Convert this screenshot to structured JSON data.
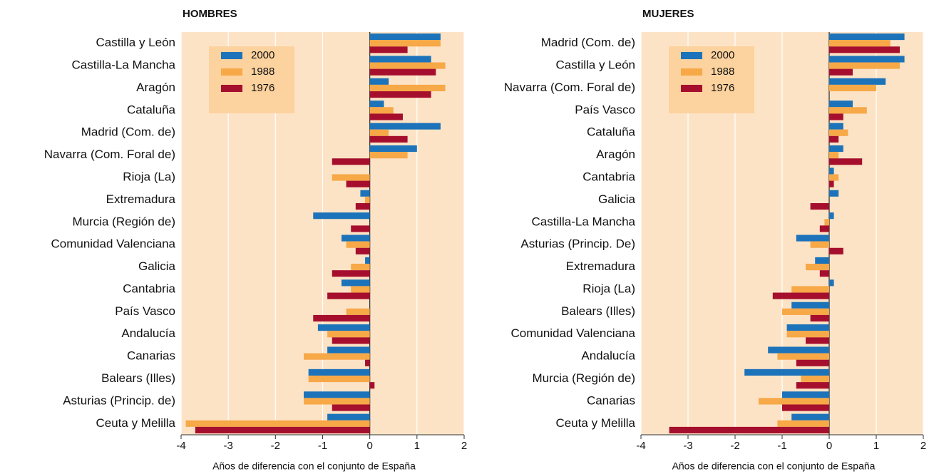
{
  "chart_data": [
    {
      "type": "barh",
      "title": "HOMBRES",
      "xlabel": "Años de diferencia con el conjunto de España",
      "categories": [
        "Castilla y León",
        "Castilla-La Mancha",
        "Aragón",
        "Cataluña",
        "Madrid (Com. de)",
        "Navarra (Com. Foral de)",
        "Rioja (La)",
        "Extremadura",
        "Murcia (Región de)",
        "Comunidad Valenciana",
        "Galicia",
        "Cantabria",
        "País Vasco",
        "Andalucía",
        "Canarias",
        "Balears (Illes)",
        "Asturias (Princip. de)",
        "Ceuta y Melilla"
      ],
      "series": [
        {
          "name": "2000",
          "color": "#1c73b9",
          "values": [
            1.5,
            1.3,
            0.4,
            0.3,
            1.5,
            1.0,
            0,
            -0.2,
            -1.2,
            -0.6,
            -0.1,
            -0.6,
            0,
            -1.1,
            -0.9,
            -1.3,
            -1.4,
            -0.9
          ]
        },
        {
          "name": "1988",
          "color": "#f7a847",
          "values": [
            1.5,
            1.6,
            1.6,
            0.5,
            0.4,
            0.8,
            -0.8,
            -0.1,
            0,
            -0.5,
            -0.4,
            -0.4,
            -0.5,
            -0.9,
            -1.4,
            -1.3,
            -1.4,
            -3.9
          ]
        },
        {
          "name": "1976",
          "color": "#a50f2d",
          "values": [
            0.8,
            1.4,
            1.3,
            0.7,
            0.8,
            -0.8,
            -0.5,
            -0.3,
            -0.4,
            -0.3,
            -0.8,
            -0.9,
            -1.2,
            -0.8,
            -0.1,
            0.1,
            -0.8,
            -3.7
          ]
        }
      ],
      "xlim": [
        -4,
        2
      ],
      "xticks": [
        -4,
        -3,
        -2,
        -1,
        0,
        1,
        2
      ],
      "grid": true,
      "legend": "upper left"
    },
    {
      "type": "barh",
      "title": "MUJERES",
      "xlabel": "Años de diferencia con el conjunto de España",
      "categories": [
        "Madrid (Com. de)",
        "Castilla y León",
        "Navarra (Com. Foral de)",
        "País Vasco",
        "Cataluña",
        "Aragón",
        "Cantabria",
        "Galicia",
        "Castilla-La Mancha",
        "Asturias (Princip. De)",
        "Extremadura",
        "Rioja (La)",
        "Balears (Illes)",
        "Comunidad Valenciana",
        "Andalucía",
        "Murcia (Región de)",
        "Canarias",
        "Ceuta y Melilla"
      ],
      "series": [
        {
          "name": "2000",
          "color": "#1c73b9",
          "values": [
            1.6,
            1.6,
            1.2,
            0.5,
            0.3,
            0.3,
            0.1,
            0.2,
            0.1,
            -0.7,
            -0.3,
            0.1,
            -0.8,
            -0.9,
            -1.3,
            -1.8,
            -1.0,
            -0.8
          ]
        },
        {
          "name": "1988",
          "color": "#f7a847",
          "values": [
            1.3,
            1.5,
            1.0,
            0.8,
            0.4,
            0.2,
            0.2,
            0,
            -0.1,
            -0.4,
            -0.5,
            -0.8,
            -1.0,
            -0.9,
            -1.1,
            -0.6,
            -1.5,
            -1.1
          ]
        },
        {
          "name": "1976",
          "color": "#a50f2d",
          "values": [
            1.5,
            0.5,
            0,
            0.3,
            0.2,
            0.7,
            0.1,
            -0.4,
            -0.2,
            0.3,
            -0.2,
            -1.2,
            -0.4,
            -0.5,
            -0.7,
            -0.7,
            -1.0,
            -3.4
          ]
        }
      ],
      "xlim": [
        -4,
        2
      ],
      "xticks": [
        -4,
        -3,
        -2,
        -1,
        0,
        1,
        2
      ],
      "grid": true,
      "legend": "upper left"
    }
  ]
}
